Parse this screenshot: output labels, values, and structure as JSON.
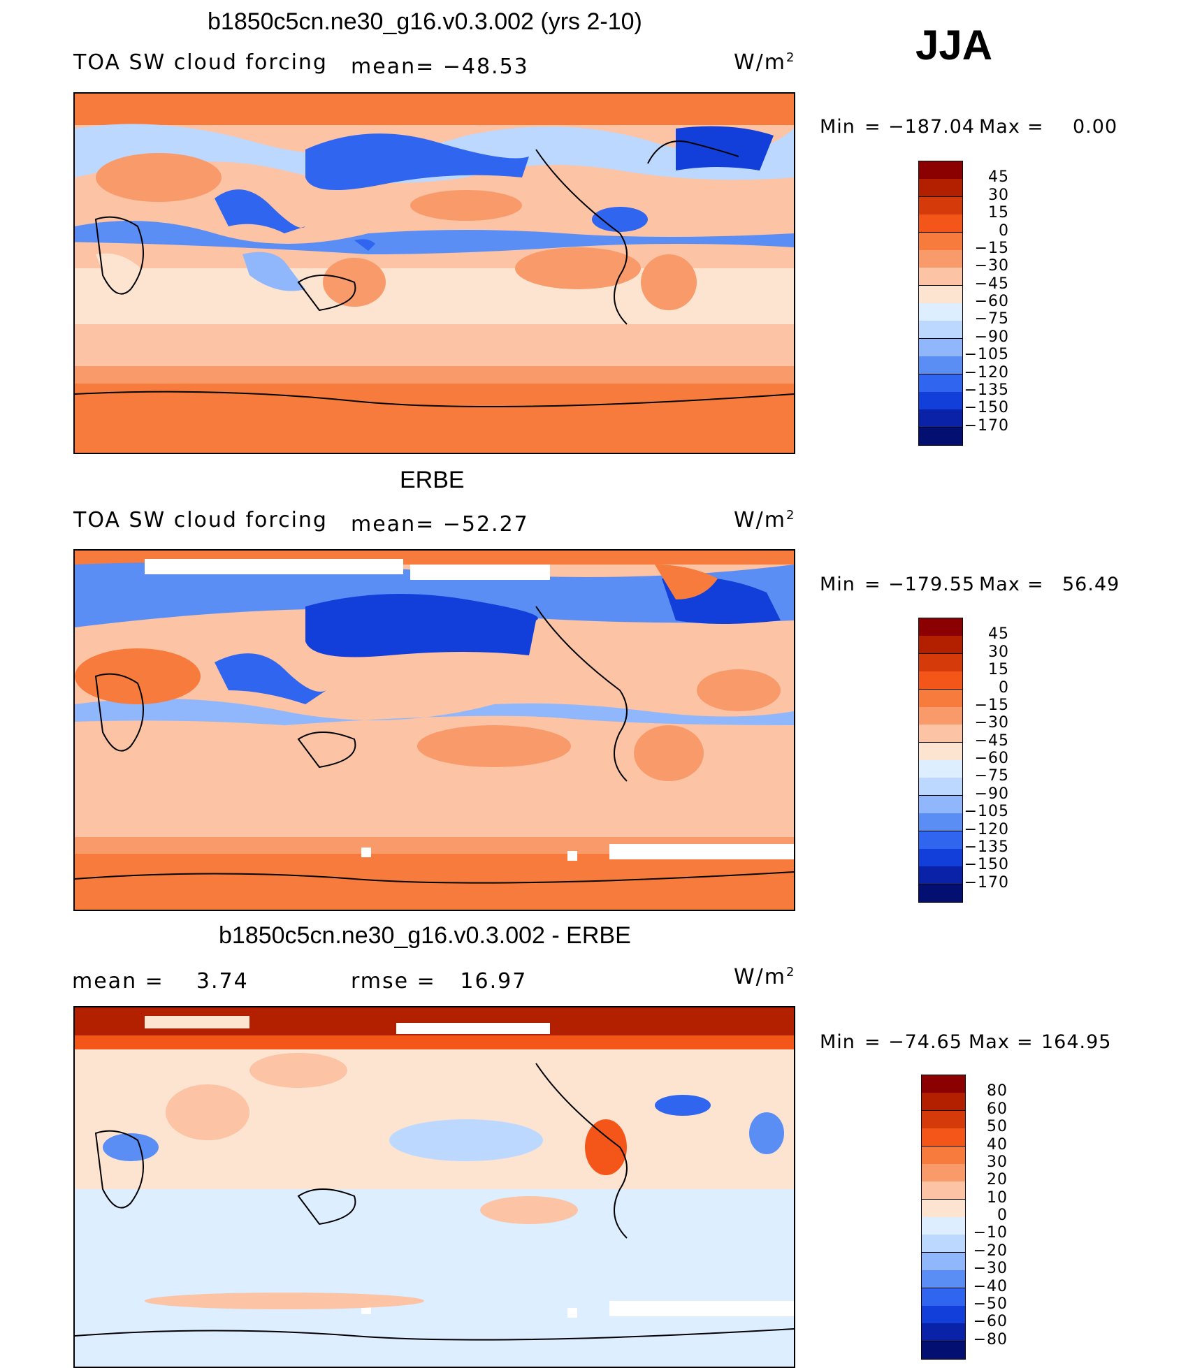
{
  "season": "JJA",
  "panels": [
    {
      "title": "b1850c5cn.ne30_g16.v0.3.002 (yrs 2-10)",
      "left_label": "TOA SW cloud forcing",
      "stat_label": "mean= −48.53",
      "units": "W/m",
      "units_sup": "2",
      "min_label": "Min",
      "min_value": "−187.04",
      "max_label": "Max",
      "max_value": "0.00",
      "colorbar_levels": [
        "45",
        "30",
        "15",
        "0",
        "−15",
        "−30",
        "−45",
        "−60",
        "−75",
        "−90",
        "−105",
        "−120",
        "−135",
        "−150",
        "−170"
      ]
    },
    {
      "title": "ERBE",
      "left_label": "TOA SW cloud forcing",
      "stat_label": "mean= −52.27",
      "units": "W/m",
      "units_sup": "2",
      "min_label": "Min",
      "min_value": "−179.55",
      "max_label": "Max",
      "max_value": "56.49",
      "colorbar_levels": [
        "45",
        "30",
        "15",
        "0",
        "−15",
        "−30",
        "−45",
        "−60",
        "−75",
        "−90",
        "−105",
        "−120",
        "−135",
        "−150",
        "−170"
      ]
    },
    {
      "title": "b1850c5cn.ne30_g16.v0.3.002 - ERBE",
      "left_label": "mean =    3.74",
      "stat_label": "rmse =   16.97",
      "units": "W/m",
      "units_sup": "2",
      "min_label": "Min",
      "min_value": "−74.65",
      "max_label": "Max",
      "max_value": "164.95",
      "colorbar_levels": [
        "80",
        "60",
        "50",
        "40",
        "30",
        "20",
        "10",
        "0",
        "−10",
        "−20",
        "−30",
        "−40",
        "−50",
        "−60",
        "−80"
      ]
    }
  ],
  "colors": {
    "palette": [
      "#8b0000",
      "#b22000",
      "#d53a0a",
      "#f4561a",
      "#f77b3c",
      "#f99a6b",
      "#fcc3a4",
      "#fde4d0",
      "#dceeff",
      "#bcd8ff",
      "#90b7fb",
      "#5b8ef4",
      "#2f65ef",
      "#123fd9",
      "#0a22a8",
      "#040f72"
    ]
  }
}
